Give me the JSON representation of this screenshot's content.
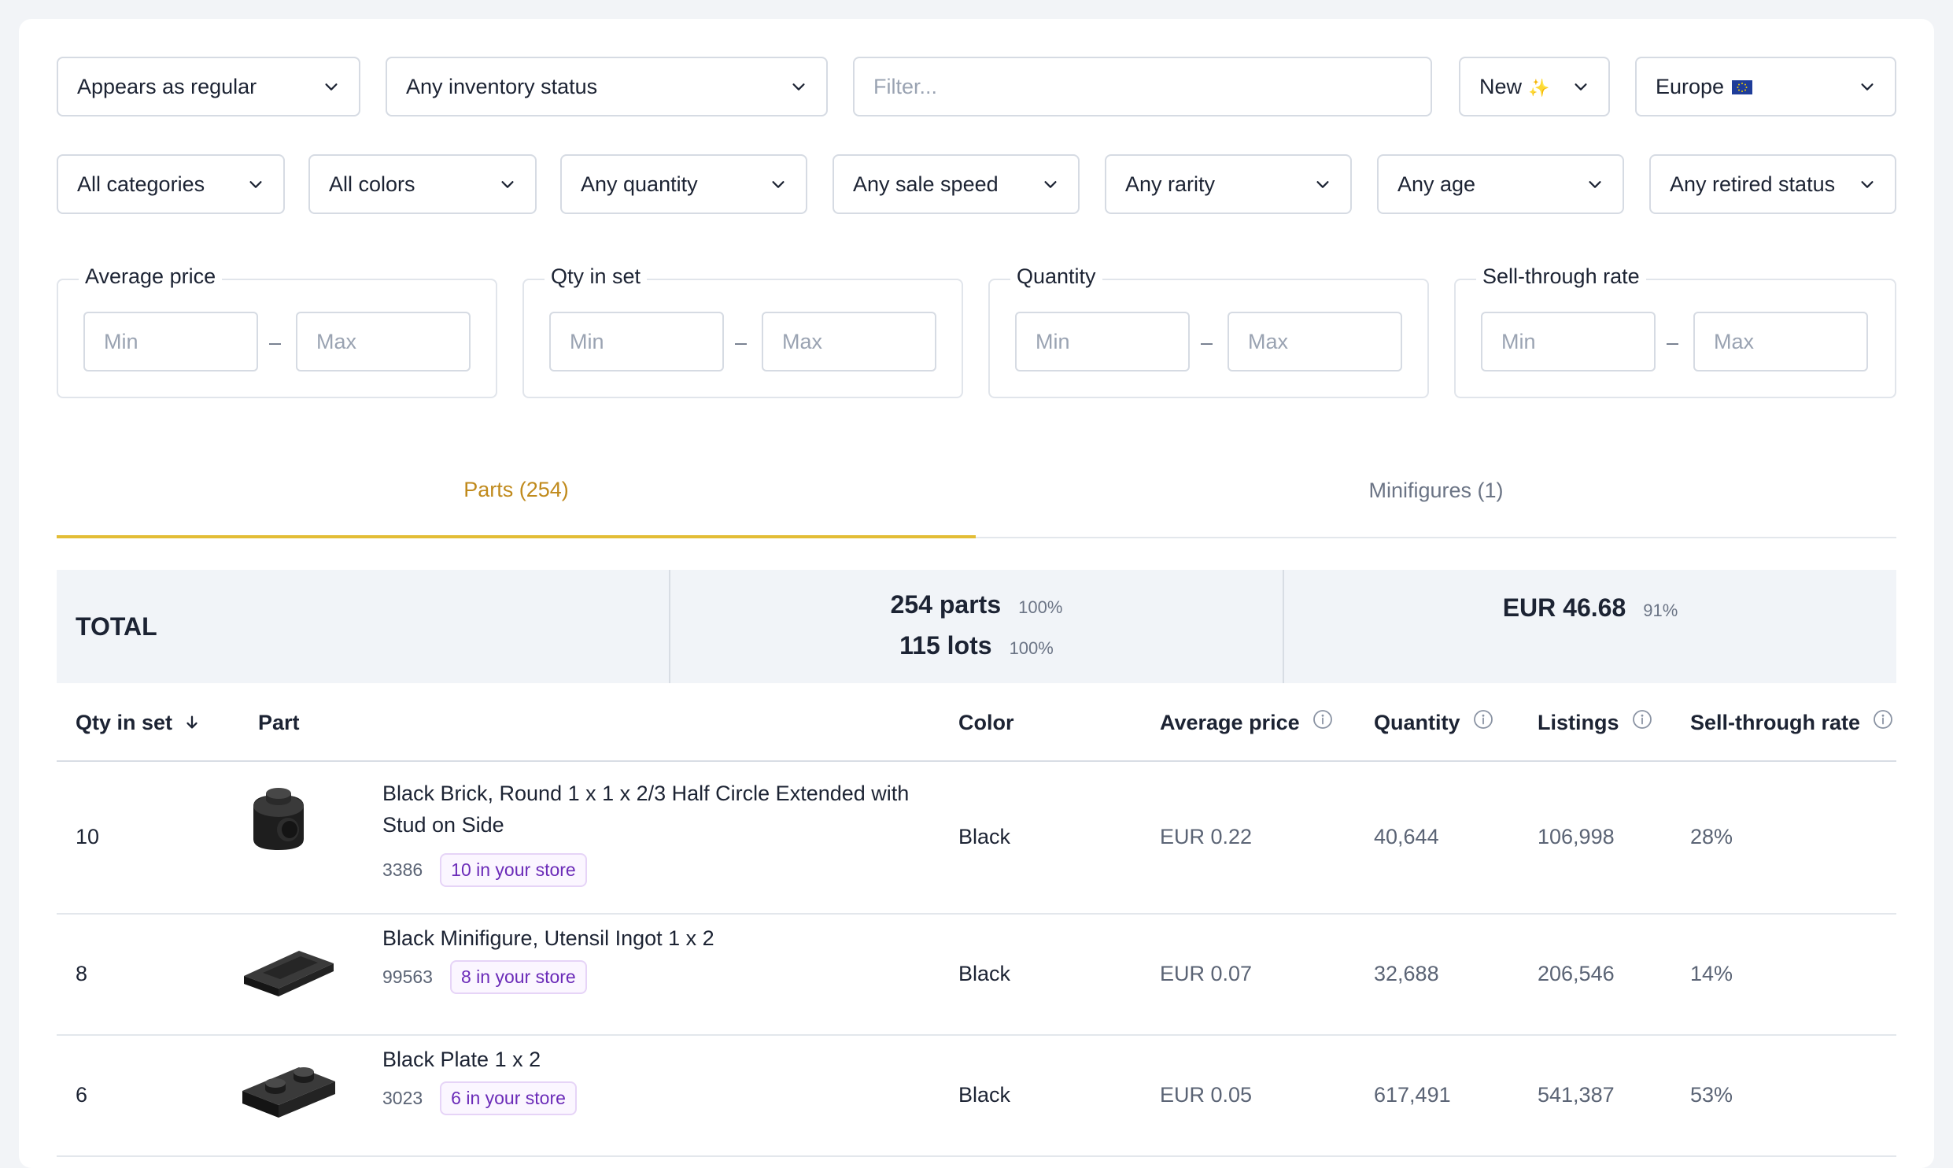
{
  "filters": {
    "appearance": "Appears as regular",
    "inventory_status": "Any inventory status",
    "search_placeholder": "Filter...",
    "condition": "New",
    "condition_emoji": "✨",
    "region": "Europe",
    "region_emoji": "🇪🇺",
    "category": "All categories",
    "color": "All colors",
    "quantity": "Any quantity",
    "sale_speed": "Any sale speed",
    "rarity": "Any rarity",
    "age": "Any age",
    "retired_status": "Any retired status"
  },
  "ranges": [
    {
      "label": "Average price",
      "min_placeholder": "Min",
      "max_placeholder": "Max"
    },
    {
      "label": "Qty in set",
      "min_placeholder": "Min",
      "max_placeholder": "Max"
    },
    {
      "label": "Quantity",
      "min_placeholder": "Min",
      "max_placeholder": "Max"
    },
    {
      "label": "Sell-through rate",
      "min_placeholder": "Min",
      "max_placeholder": "Max"
    }
  ],
  "range_separator": "–",
  "tabs": [
    {
      "label": "Parts (254)",
      "active": true
    },
    {
      "label": "Minifigures (1)",
      "active": false
    }
  ],
  "colors": {
    "accent_tab_text": "#c08a1c",
    "accent_tab_underline": "#e3bd36",
    "store_badge_text": "#6b2bb8"
  },
  "total": {
    "label": "TOTAL",
    "parts": "254 parts",
    "parts_pct": "100%",
    "lots": "115 lots",
    "lots_pct": "100%",
    "value": "EUR 46.68",
    "value_pct": "91%"
  },
  "table": {
    "columns": {
      "qty": "Qty in set",
      "part": "Part",
      "color": "Color",
      "avg_price": "Average price",
      "quantity": "Quantity",
      "listings": "Listings",
      "sell_through": "Sell-through rate"
    },
    "rows": [
      {
        "qty": "10",
        "name": "Black Brick, Round 1 x 1 x 2/3 Half Circle Extended with Stud on Side",
        "part_no": "3386",
        "store": "10 in your store",
        "color": "Black",
        "avg_price": "EUR 0.22",
        "quantity": "40,644",
        "listings": "106,998",
        "sell_through": "28%",
        "icon": "round-brick-with-side-stud-icon"
      },
      {
        "qty": "8",
        "name": "Black Minifigure, Utensil Ingot 1 x 2",
        "part_no": "99563",
        "store": "8 in your store",
        "color": "Black",
        "avg_price": "EUR 0.07",
        "quantity": "32,688",
        "listings": "206,546",
        "sell_through": "14%",
        "icon": "ingot-icon"
      },
      {
        "qty": "6",
        "name": "Black Plate 1 x 2",
        "part_no": "3023",
        "store": "6 in your store",
        "color": "Black",
        "avg_price": "EUR 0.05",
        "quantity": "617,491",
        "listings": "541,387",
        "sell_through": "53%",
        "icon": "plate-1x2-icon"
      }
    ]
  }
}
